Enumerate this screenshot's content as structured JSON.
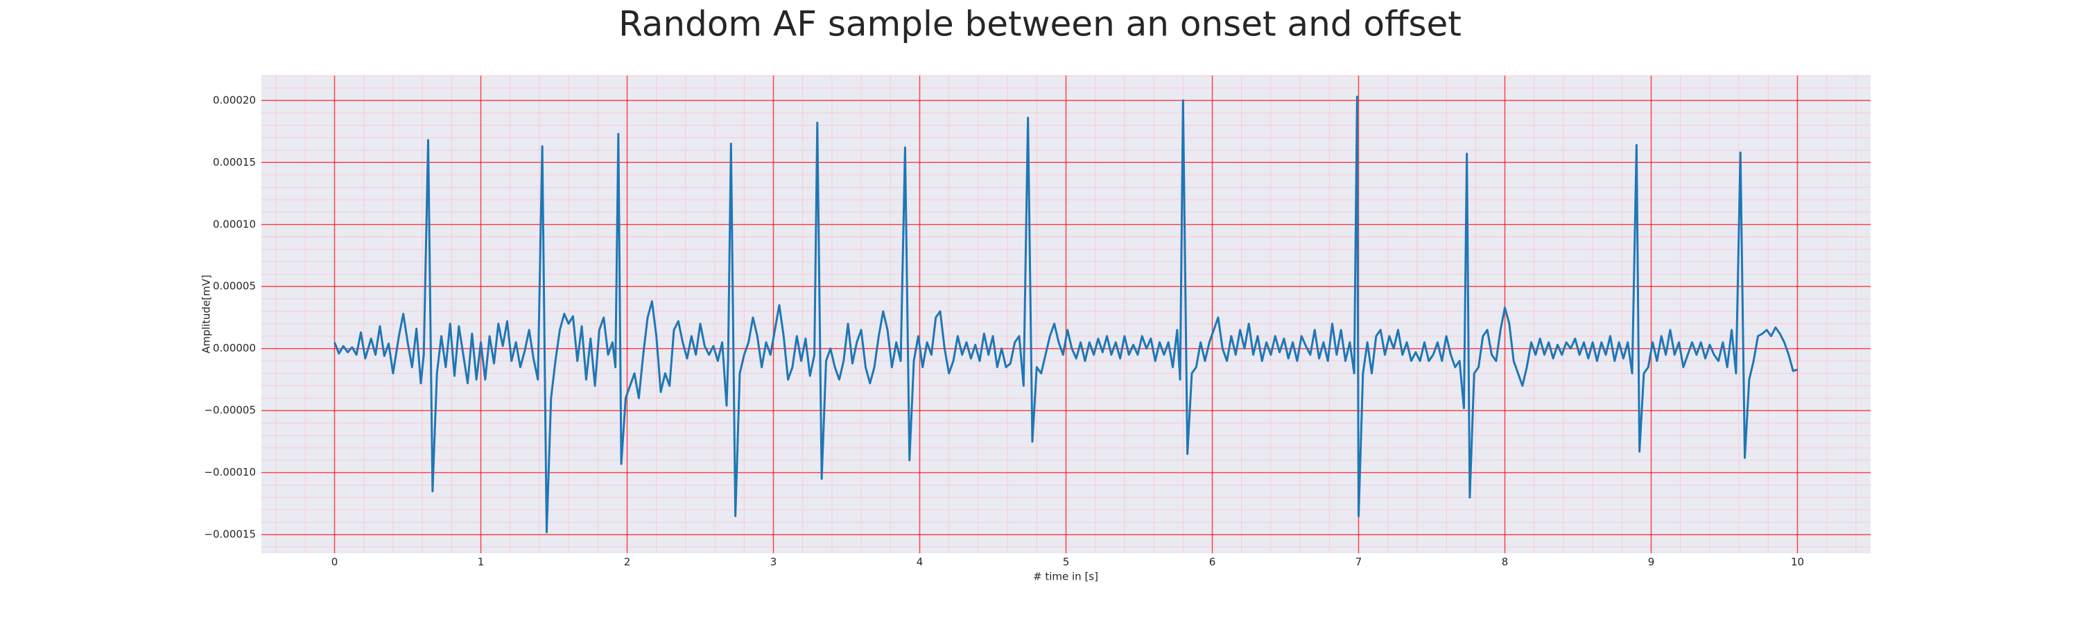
{
  "chart_data": {
    "type": "line",
    "title": "Random AF sample between an onset and offset",
    "xlabel": "# time in [s]",
    "ylabel": "Amplitude[mV]",
    "color": "#1f77b4",
    "background": "#eaeaf2",
    "grid": {
      "major_color": "#ff0000",
      "minor_color": "#ffb6c1",
      "minor_per_major": 5
    },
    "xlim": [
      -0.5,
      10.5
    ],
    "xticks": [
      0,
      1,
      2,
      3,
      4,
      5,
      6,
      7,
      8,
      9,
      10
    ],
    "ylim": [
      -0.000165,
      0.00022
    ],
    "yticks": [
      {
        "value": -0.00015,
        "label": "−0.00015"
      },
      {
        "value": -0.0001,
        "label": "−0.00010"
      },
      {
        "value": -5e-05,
        "label": "−0.00005"
      },
      {
        "value": 0,
        "label": "0.00000"
      },
      {
        "value": 5e-05,
        "label": "0.00005"
      },
      {
        "value": 0.0001,
        "label": "0.00010"
      },
      {
        "value": 0.00015,
        "label": "0.00015"
      },
      {
        "value": 0.0002,
        "label": "0.00020"
      }
    ],
    "x": [
      0,
      0.03,
      0.06,
      0.09,
      0.12,
      0.15,
      0.18,
      0.21,
      0.25,
      0.28,
      0.31,
      0.34,
      0.37,
      0.4,
      0.44,
      0.47,
      0.5,
      0.53,
      0.56,
      0.59,
      0.61,
      0.64,
      0.67,
      0.7,
      0.73,
      0.76,
      0.79,
      0.82,
      0.85,
      0.88,
      0.91,
      0.94,
      0.97,
      1.0,
      1.03,
      1.06,
      1.09,
      1.12,
      1.15,
      1.18,
      1.21,
      1.24,
      1.27,
      1.3,
      1.33,
      1.36,
      1.39,
      1.42,
      1.45,
      1.48,
      1.51,
      1.54,
      1.57,
      1.6,
      1.63,
      1.66,
      1.69,
      1.72,
      1.75,
      1.78,
      1.81,
      1.84,
      1.87,
      1.9,
      1.92,
      1.94,
      1.96,
      1.99,
      2.02,
      2.05,
      2.08,
      2.11,
      2.14,
      2.17,
      2.2,
      2.23,
      2.26,
      2.29,
      2.32,
      2.35,
      2.38,
      2.41,
      2.44,
      2.47,
      2.5,
      2.53,
      2.56,
      2.59,
      2.62,
      2.65,
      2.68,
      2.69,
      2.71,
      2.74,
      2.77,
      2.8,
      2.83,
      2.86,
      2.89,
      2.92,
      2.95,
      2.98,
      3.01,
      3.04,
      3.07,
      3.1,
      3.13,
      3.16,
      3.19,
      3.22,
      3.25,
      3.28,
      3.3,
      3.33,
      3.36,
      3.39,
      3.42,
      3.45,
      3.48,
      3.51,
      3.54,
      3.57,
      3.6,
      3.63,
      3.66,
      3.69,
      3.72,
      3.75,
      3.78,
      3.81,
      3.84,
      3.87,
      3.9,
      3.93,
      3.96,
      3.99,
      4.02,
      4.05,
      4.08,
      4.11,
      4.14,
      4.17,
      4.2,
      4.23,
      4.26,
      4.29,
      4.32,
      4.35,
      4.38,
      4.41,
      4.44,
      4.47,
      4.5,
      4.53,
      4.56,
      4.59,
      4.62,
      4.65,
      4.68,
      4.71,
      4.74,
      4.77,
      4.8,
      4.83,
      4.86,
      4.89,
      4.92,
      4.95,
      4.98,
      5.01,
      5.04,
      5.07,
      5.1,
      5.13,
      5.16,
      5.19,
      5.22,
      5.25,
      5.28,
      5.31,
      5.34,
      5.37,
      5.4,
      5.43,
      5.46,
      5.49,
      5.52,
      5.55,
      5.58,
      5.61,
      5.64,
      5.67,
      5.7,
      5.73,
      5.76,
      5.78,
      5.8,
      5.83,
      5.86,
      5.89,
      5.92,
      5.95,
      5.98,
      6.01,
      6.04,
      6.07,
      6.1,
      6.13,
      6.16,
      6.19,
      6.22,
      6.25,
      6.28,
      6.31,
      6.34,
      6.37,
      6.4,
      6.43,
      6.46,
      6.49,
      6.52,
      6.55,
      6.58,
      6.61,
      6.64,
      6.67,
      6.7,
      6.73,
      6.76,
      6.79,
      6.82,
      6.85,
      6.88,
      6.91,
      6.94,
      6.97,
      6.99,
      7.0,
      7.03,
      7.06,
      7.09,
      7.12,
      7.15,
      7.18,
      7.21,
      7.24,
      7.27,
      7.3,
      7.33,
      7.36,
      7.39,
      7.42,
      7.45,
      7.48,
      7.51,
      7.54,
      7.57,
      7.6,
      7.63,
      7.66,
      7.69,
      7.72,
      7.74,
      7.76,
      7.79,
      7.82,
      7.85,
      7.88,
      7.91,
      7.94,
      7.97,
      8.0,
      8.03,
      8.06,
      8.09,
      8.12,
      8.15,
      8.18,
      8.21,
      8.24,
      8.27,
      8.3,
      8.33,
      8.36,
      8.39,
      8.42,
      8.45,
      8.48,
      8.51,
      8.54,
      8.57,
      8.6,
      8.63,
      8.66,
      8.69,
      8.72,
      8.75,
      8.78,
      8.81,
      8.84,
      8.87,
      8.9,
      8.92,
      8.95,
      8.98,
      9.01,
      9.04,
      9.07,
      9.1,
      9.13,
      9.16,
      9.19,
      9.22,
      9.25,
      9.28,
      9.31,
      9.34,
      9.37,
      9.4,
      9.43,
      9.46,
      9.49,
      9.52,
      9.55,
      9.58,
      9.61,
      9.64,
      9.67,
      9.7,
      9.73,
      9.76,
      9.79,
      9.82,
      9.85,
      9.88,
      9.91,
      9.94,
      9.97,
      10.0
    ],
    "values": [
      5e-06,
      -4e-06,
      2e-06,
      -3e-06,
      1e-06,
      -5e-06,
      1.3e-05,
      -8e-06,
      8e-06,
      -5e-06,
      1.8e-05,
      -6e-06,
      4e-06,
      -2e-05,
      1e-05,
      2.8e-05,
      5e-06,
      -1.5e-05,
      1.6e-05,
      -2.8e-05,
      -5e-06,
      0.000168,
      -0.000115,
      -2e-05,
      1e-05,
      -1.5e-05,
      2e-05,
      -2.2e-05,
      1.8e-05,
      -5e-06,
      -2.8e-05,
      1.2e-05,
      -2.5e-05,
      5e-06,
      -2.5e-05,
      1e-05,
      -1.2e-05,
      2e-05,
      2e-06,
      2.2e-05,
      -1e-05,
      5e-06,
      -1.5e-05,
      -2e-06,
      1.5e-05,
      -8e-06,
      -2.5e-05,
      0.000163,
      -0.000148,
      -4e-05,
      -1e-05,
      1.5e-05,
      2.8e-05,
      2e-05,
      2.6e-05,
      -1e-05,
      1.8e-05,
      -2.5e-05,
      8e-06,
      -3e-05,
      1.5e-05,
      2.5e-05,
      -5e-06,
      5e-06,
      -1.5e-05,
      0.000173,
      -9.3e-05,
      -4e-05,
      -3e-05,
      -2e-05,
      -4e-05,
      -5e-06,
      2.5e-05,
      3.8e-05,
      1e-05,
      -3.5e-05,
      -2e-05,
      -3e-05,
      1.5e-05,
      2.2e-05,
      5e-06,
      -8e-06,
      1e-05,
      -5e-06,
      2e-05,
      2e-06,
      -5e-06,
      2e-06,
      -1e-05,
      5e-06,
      -4.6e-05,
      -1e-05,
      0.000165,
      -0.000135,
      -2e-05,
      -5e-06,
      5e-06,
      2.5e-05,
      1e-05,
      -1.5e-05,
      5e-06,
      -5e-06,
      1.5e-05,
      3.5e-05,
      1e-05,
      -2.5e-05,
      -1.5e-05,
      1e-05,
      -1e-05,
      8e-06,
      -2.2e-05,
      -5e-06,
      0.000182,
      -0.000105,
      -1e-05,
      0,
      -1.5e-05,
      -2.5e-05,
      -1e-05,
      2e-05,
      -1.2e-05,
      5e-06,
      1.5e-05,
      -1.5e-05,
      -2.8e-05,
      -1.5e-05,
      1e-05,
      3e-05,
      1.5e-05,
      -1.5e-05,
      5e-06,
      -1e-05,
      0.000162,
      -9e-05,
      -1e-05,
      1e-05,
      -1.5e-05,
      5e-06,
      -5e-06,
      2.5e-05,
      3e-05,
      0,
      -2e-05,
      -1e-05,
      1e-05,
      -5e-06,
      5e-06,
      -8e-06,
      3e-06,
      -1e-05,
      1.2e-05,
      -5e-06,
      1e-05,
      -1.5e-05,
      0,
      -1.5e-05,
      -1.2e-05,
      5e-06,
      1e-05,
      -3e-05,
      0.000186,
      -7.5e-05,
      -1.5e-05,
      -2e-05,
      -5e-06,
      1e-05,
      2e-05,
      5e-06,
      -5e-06,
      1.5e-05,
      0,
      -8e-06,
      5e-06,
      -1e-05,
      5e-06,
      -5e-06,
      8e-06,
      -3e-06,
      1e-05,
      -5e-06,
      5e-06,
      -8e-06,
      1e-05,
      -5e-06,
      3e-06,
      -5e-06,
      1e-05,
      0,
      8e-06,
      -1e-05,
      5e-06,
      -5e-06,
      5e-06,
      -1.5e-05,
      1.5e-05,
      -2.5e-05,
      0.0002,
      -8.5e-05,
      -2e-05,
      -1.5e-05,
      5e-06,
      -1e-05,
      5e-06,
      1.5e-05,
      2.5e-05,
      0,
      -1e-05,
      1e-05,
      -5e-06,
      1.5e-05,
      0,
      2e-05,
      -5e-06,
      1e-05,
      -1e-05,
      5e-06,
      -5e-06,
      1e-05,
      -3e-06,
      8e-06,
      -8e-06,
      5e-06,
      -1e-05,
      1e-05,
      2e-06,
      -5e-06,
      1.5e-05,
      -8e-06,
      5e-06,
      -1e-05,
      2e-05,
      -5e-06,
      1.5e-05,
      -1e-05,
      5e-06,
      -2e-05,
      0.000203,
      -0.000135,
      -2e-05,
      5e-06,
      -2e-05,
      1e-05,
      1.5e-05,
      -5e-06,
      1e-05,
      0,
      1.5e-05,
      -5e-06,
      5e-06,
      -1e-05,
      -3e-06,
      -1e-05,
      5e-06,
      -1e-05,
      -5e-06,
      5e-06,
      -1e-05,
      1e-05,
      -5e-06,
      -1.5e-05,
      -1e-05,
      -4.8e-05,
      0.000157,
      -0.00012,
      -2e-05,
      -1.5e-05,
      1e-05,
      1.5e-05,
      -5e-06,
      -1e-05,
      1.5e-05,
      3.3e-05,
      2e-05,
      -1e-05,
      -2e-05,
      -3e-05,
      -1.5e-05,
      5e-06,
      -5e-06,
      8e-06,
      -5e-06,
      5e-06,
      -8e-06,
      3e-06,
      -5e-06,
      5e-06,
      0,
      8e-06,
      -5e-06,
      5e-06,
      -8e-06,
      5e-06,
      -1e-05,
      5e-06,
      -5e-06,
      1e-05,
      -1e-05,
      5e-06,
      -8e-06,
      5e-06,
      -2e-05,
      0.000164,
      -8.3e-05,
      -2e-05,
      -1.5e-05,
      5e-06,
      -1e-05,
      1e-05,
      -5e-06,
      1.5e-05,
      -5e-06,
      5e-06,
      -1.5e-05,
      -5e-06,
      5e-06,
      -5e-06,
      5e-06,
      -8e-06,
      3e-06,
      -5e-06,
      -1e-05,
      5e-06,
      -1.5e-05,
      1.5e-05,
      -2e-05,
      0.000158,
      -8.8e-05,
      -2.5e-05,
      -1e-05,
      1e-05,
      1.2e-05,
      1.5e-05,
      1e-05,
      1.7e-05,
      1.2e-05,
      5e-06,
      -5e-06,
      -1.8e-05,
      -1.7e-05
    ]
  }
}
